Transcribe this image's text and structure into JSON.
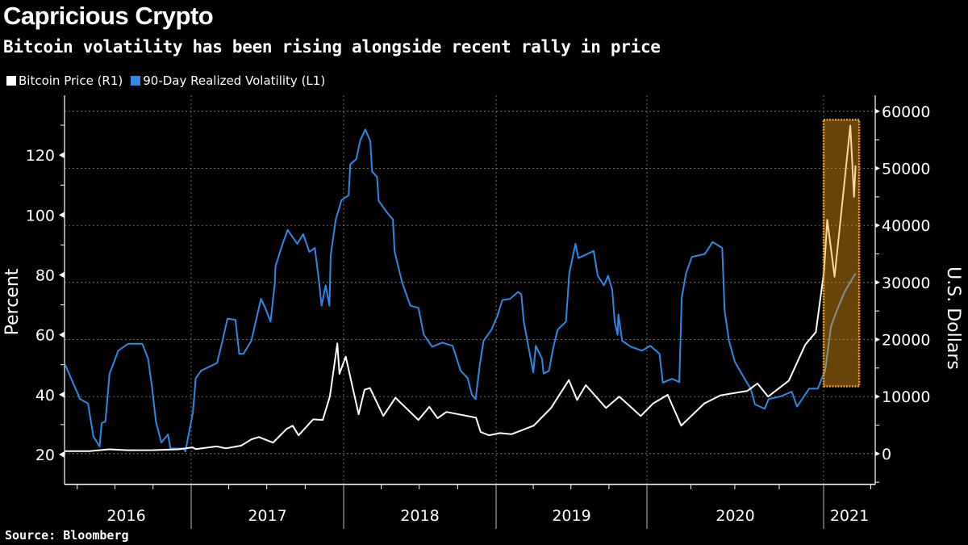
{
  "header": {
    "title": "Capricious Crypto",
    "subtitle": "Bitcoin volatility has been rising alongside recent rally in price"
  },
  "legend": [
    {
      "label": "Bitcoin Price (R1)",
      "color": "#ffffff"
    },
    {
      "label": "90-Day Realized Volatility (L1)",
      "color": "#2f88e6"
    }
  ],
  "footer": {
    "source": "Source: Bloomberg"
  },
  "chart_data": {
    "type": "line",
    "title": "Capricious Crypto",
    "subtitle": "Bitcoin volatility has been rising alongside recent rally in price",
    "grid": true,
    "legend_position": "top-left",
    "x_axis": {
      "type": "date",
      "tick_labels": [
        "2016",
        "2017",
        "2018",
        "2019",
        "2020",
        "2021"
      ]
    },
    "left_axis": {
      "label": "Percent",
      "ylim": [
        10,
        140
      ],
      "ticks": [
        20,
        40,
        60,
        80,
        100,
        120
      ]
    },
    "right_axis": {
      "label": "U.S. Dollars",
      "ylim": [
        -5400,
        62800
      ],
      "ticks": [
        0,
        10000,
        20000,
        30000,
        40000,
        50000,
        60000
      ]
    },
    "series": [
      {
        "name": "90-Day Realized Volatility (L1)",
        "axis": "left",
        "color": "#2f88e6",
        "points": [
          [
            "2016-03-03",
            50
          ],
          [
            "2016-04-08",
            38.5
          ],
          [
            "2016-04-27",
            37
          ],
          [
            "2016-05-10",
            26
          ],
          [
            "2016-05-25",
            22.7
          ],
          [
            "2016-05-30",
            30.5
          ],
          [
            "2016-06-08",
            31
          ],
          [
            "2016-06-18",
            47
          ],
          [
            "2016-06-28",
            50.6
          ],
          [
            "2016-07-09",
            54.7
          ],
          [
            "2016-08-02",
            57
          ],
          [
            "2016-09-05",
            57
          ],
          [
            "2016-09-19",
            52
          ],
          [
            "2016-09-28",
            43
          ],
          [
            "2016-10-08",
            31
          ],
          [
            "2016-10-21",
            24
          ],
          [
            "2016-11-06",
            26.7
          ],
          [
            "2016-11-12",
            22
          ],
          [
            "2016-12-14",
            22
          ],
          [
            "2016-12-18",
            21
          ],
          [
            "2017-01-05",
            34
          ],
          [
            "2017-01-12",
            45.5
          ],
          [
            "2017-01-25",
            48
          ],
          [
            "2017-03-04",
            50.6
          ],
          [
            "2017-03-17",
            58
          ],
          [
            "2017-03-29",
            65.4
          ],
          [
            "2017-04-17",
            65
          ],
          [
            "2017-04-26",
            53.6
          ],
          [
            "2017-05-06",
            53.6
          ],
          [
            "2017-05-25",
            58
          ],
          [
            "2017-06-17",
            72
          ],
          [
            "2017-06-27",
            69
          ],
          [
            "2017-07-10",
            64.4
          ],
          [
            "2017-07-20",
            77
          ],
          [
            "2017-07-22",
            83
          ],
          [
            "2017-08-08",
            90.4
          ],
          [
            "2017-08-20",
            95
          ],
          [
            "2017-09-12",
            90.4
          ],
          [
            "2017-09-26",
            93.6
          ],
          [
            "2017-10-11",
            87.7
          ],
          [
            "2017-10-24",
            89
          ],
          [
            "2017-11-03",
            78
          ],
          [
            "2017-11-09",
            69.7
          ],
          [
            "2017-11-19",
            76.5
          ],
          [
            "2017-11-28",
            69.7
          ],
          [
            "2017-12-01",
            86.4
          ],
          [
            "2017-12-13",
            98.5
          ],
          [
            "2017-12-27",
            105
          ],
          [
            "2018-01-13",
            106.6
          ],
          [
            "2018-01-17",
            117
          ],
          [
            "2018-01-31",
            118.6
          ],
          [
            "2018-02-10",
            125
          ],
          [
            "2018-02-22",
            128.6
          ],
          [
            "2018-03-06",
            124.6
          ],
          [
            "2018-03-10",
            114.6
          ],
          [
            "2018-03-22",
            112.7
          ],
          [
            "2018-03-26",
            104.7
          ],
          [
            "2018-04-14",
            101
          ],
          [
            "2018-04-29",
            98.5
          ],
          [
            "2018-05-03",
            87.7
          ],
          [
            "2018-05-22",
            77
          ],
          [
            "2018-06-10",
            69.7
          ],
          [
            "2018-06-29",
            69
          ],
          [
            "2018-07-12",
            60
          ],
          [
            "2018-08-01",
            56
          ],
          [
            "2018-08-25",
            57.4
          ],
          [
            "2018-09-19",
            56.3
          ],
          [
            "2018-10-08",
            48
          ],
          [
            "2018-10-25",
            45.5
          ],
          [
            "2018-11-04",
            40
          ],
          [
            "2018-11-13",
            38.5
          ],
          [
            "2018-11-23",
            50
          ],
          [
            "2018-12-02",
            58
          ],
          [
            "2018-12-21",
            61.7
          ],
          [
            "2019-01-04",
            66.2
          ],
          [
            "2019-01-16",
            71.6
          ],
          [
            "2019-02-04",
            72
          ],
          [
            "2019-02-23",
            74.3
          ],
          [
            "2019-03-03",
            73.5
          ],
          [
            "2019-03-09",
            64.4
          ],
          [
            "2019-03-22",
            54.7
          ],
          [
            "2019-04-01",
            47.4
          ],
          [
            "2019-04-07",
            56.3
          ],
          [
            "2019-04-22",
            52
          ],
          [
            "2019-04-26",
            47
          ],
          [
            "2019-05-09",
            48
          ],
          [
            "2019-05-19",
            55.5
          ],
          [
            "2019-05-30",
            61.7
          ],
          [
            "2019-06-19",
            64.4
          ],
          [
            "2019-06-27",
            80.5
          ],
          [
            "2019-07-12",
            90.4
          ],
          [
            "2019-07-19",
            85.6
          ],
          [
            "2019-08-25",
            88
          ],
          [
            "2019-09-04",
            79.7
          ],
          [
            "2019-09-19",
            76.5
          ],
          [
            "2019-09-29",
            79.7
          ],
          [
            "2019-10-09",
            75
          ],
          [
            "2019-10-15",
            64.4
          ],
          [
            "2019-10-22",
            60
          ],
          [
            "2019-10-24",
            66.8
          ],
          [
            "2019-11-02",
            58
          ],
          [
            "2019-11-23",
            56
          ],
          [
            "2019-12-20",
            54.7
          ],
          [
            "2020-01-08",
            56.3
          ],
          [
            "2020-01-27",
            53.6
          ],
          [
            "2020-02-03",
            44
          ],
          [
            "2020-02-22",
            45.3
          ],
          [
            "2020-03-08",
            44.2
          ],
          [
            "2020-03-13",
            72.4
          ],
          [
            "2020-03-22",
            80.5
          ],
          [
            "2020-04-03",
            86
          ],
          [
            "2020-04-30",
            87
          ],
          [
            "2020-05-16",
            91
          ],
          [
            "2020-06-05",
            89
          ],
          [
            "2020-06-10",
            68
          ],
          [
            "2020-06-19",
            58
          ],
          [
            "2020-07-01",
            51
          ],
          [
            "2020-07-26",
            44
          ],
          [
            "2020-08-03",
            42
          ],
          [
            "2020-08-12",
            36.7
          ],
          [
            "2020-09-01",
            35.3
          ],
          [
            "2020-09-09",
            38.5
          ],
          [
            "2020-10-04",
            39.4
          ],
          [
            "2020-10-27",
            41
          ],
          [
            "2020-11-07",
            36
          ],
          [
            "2020-12-02",
            42
          ],
          [
            "2020-12-20",
            42
          ],
          [
            "2020-12-28",
            45.3
          ],
          [
            "2021-01-04",
            48
          ],
          [
            "2021-01-15",
            62.7
          ],
          [
            "2021-01-26",
            68
          ],
          [
            "2021-02-10",
            74.3
          ],
          [
            "2021-02-19",
            77
          ],
          [
            "2021-03-03",
            80.5
          ]
        ]
      },
      {
        "name": "Bitcoin Price (R1)",
        "axis": "right",
        "color": "#ffffff",
        "points": [
          [
            "2016-03-01",
            430
          ],
          [
            "2016-05-01",
            450
          ],
          [
            "2016-06-17",
            750
          ],
          [
            "2016-08-01",
            600
          ],
          [
            "2016-10-01",
            610
          ],
          [
            "2016-12-01",
            750
          ],
          [
            "2017-01-04",
            1100
          ],
          [
            "2017-01-12",
            800
          ],
          [
            "2017-03-03",
            1270
          ],
          [
            "2017-03-25",
            930
          ],
          [
            "2017-05-01",
            1400
          ],
          [
            "2017-05-25",
            2500
          ],
          [
            "2017-06-12",
            2900
          ],
          [
            "2017-07-16",
            1930
          ],
          [
            "2017-08-17",
            4300
          ],
          [
            "2017-09-01",
            4900
          ],
          [
            "2017-09-15",
            3200
          ],
          [
            "2017-10-20",
            6000
          ],
          [
            "2017-11-12",
            5900
          ],
          [
            "2017-11-29",
            10000
          ],
          [
            "2017-12-17",
            19300
          ],
          [
            "2017-12-22",
            14000
          ],
          [
            "2018-01-06",
            17000
          ],
          [
            "2018-02-06",
            6900
          ],
          [
            "2018-02-20",
            11200
          ],
          [
            "2018-03-05",
            11500
          ],
          [
            "2018-04-06",
            6600
          ],
          [
            "2018-05-05",
            9800
          ],
          [
            "2018-06-29",
            5900
          ],
          [
            "2018-07-25",
            8200
          ],
          [
            "2018-08-14",
            6200
          ],
          [
            "2018-09-04",
            7300
          ],
          [
            "2018-11-14",
            6300
          ],
          [
            "2018-11-25",
            3800
          ],
          [
            "2018-12-15",
            3200
          ],
          [
            "2019-01-10",
            3600
          ],
          [
            "2019-02-07",
            3400
          ],
          [
            "2019-04-02",
            4900
          ],
          [
            "2019-05-14",
            8000
          ],
          [
            "2019-06-26",
            12900
          ],
          [
            "2019-07-16",
            9400
          ],
          [
            "2019-08-06",
            12000
          ],
          [
            "2019-09-24",
            8000
          ],
          [
            "2019-10-26",
            10000
          ],
          [
            "2019-12-17",
            6600
          ],
          [
            "2020-01-14",
            8800
          ],
          [
            "2020-02-13",
            10300
          ],
          [
            "2020-03-12",
            4900
          ],
          [
            "2020-04-29",
            8800
          ],
          [
            "2020-06-01",
            10200
          ],
          [
            "2020-07-27",
            11000
          ],
          [
            "2020-08-17",
            12300
          ],
          [
            "2020-09-08",
            10000
          ],
          [
            "2020-10-21",
            12800
          ],
          [
            "2020-11-24",
            19100
          ],
          [
            "2020-12-16",
            21300
          ],
          [
            "2021-01-02",
            32000
          ],
          [
            "2021-01-08",
            41000
          ],
          [
            "2021-01-22",
            31000
          ],
          [
            "2021-02-08",
            46000
          ],
          [
            "2021-02-21",
            57500
          ],
          [
            "2021-02-28",
            45000
          ],
          [
            "2021-03-03",
            50500
          ]
        ]
      }
    ],
    "highlight": {
      "x_start": "2021-01-01",
      "x_end": "2021-03-10",
      "y_low": 11800,
      "y_high": 58500,
      "axis": "right",
      "color": "#f7a21b"
    }
  }
}
